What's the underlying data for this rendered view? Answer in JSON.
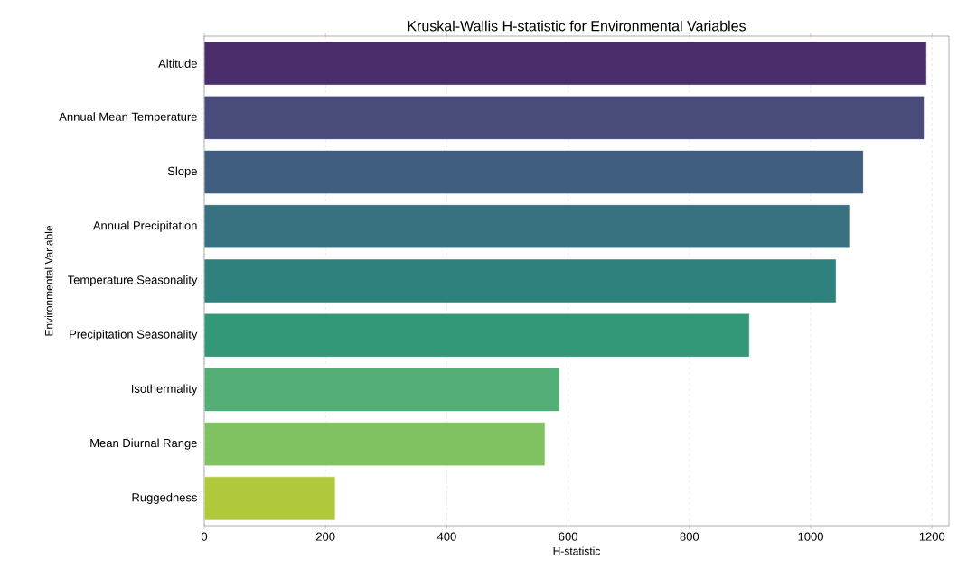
{
  "chart_data": {
    "type": "bar",
    "orientation": "horizontal",
    "title": "Kruskal-Wallis H-statistic for Environmental Variables",
    "xlabel": "H-statistic",
    "ylabel": "Environmental Variable",
    "categories": [
      "Altitude",
      "Annual Mean Temperature",
      "Slope",
      "Annual Precipitation",
      "Temperature Seasonality",
      "Precipitation Seasonality",
      "Isothermality",
      "Mean Diurnal Range",
      "Ruggedness"
    ],
    "values": [
      1191,
      1187,
      1087,
      1064,
      1042,
      899,
      586,
      562,
      216
    ],
    "colors": [
      "#4a2e6b",
      "#4a4c7b",
      "#3f5e80",
      "#38717f",
      "#2e817c",
      "#33977a",
      "#52ae74",
      "#80c262",
      "#afc83c"
    ],
    "xlim": [
      0,
      1228
    ],
    "xticks": [
      0,
      200,
      400,
      600,
      800,
      1000,
      1200
    ],
    "grid": "x"
  }
}
